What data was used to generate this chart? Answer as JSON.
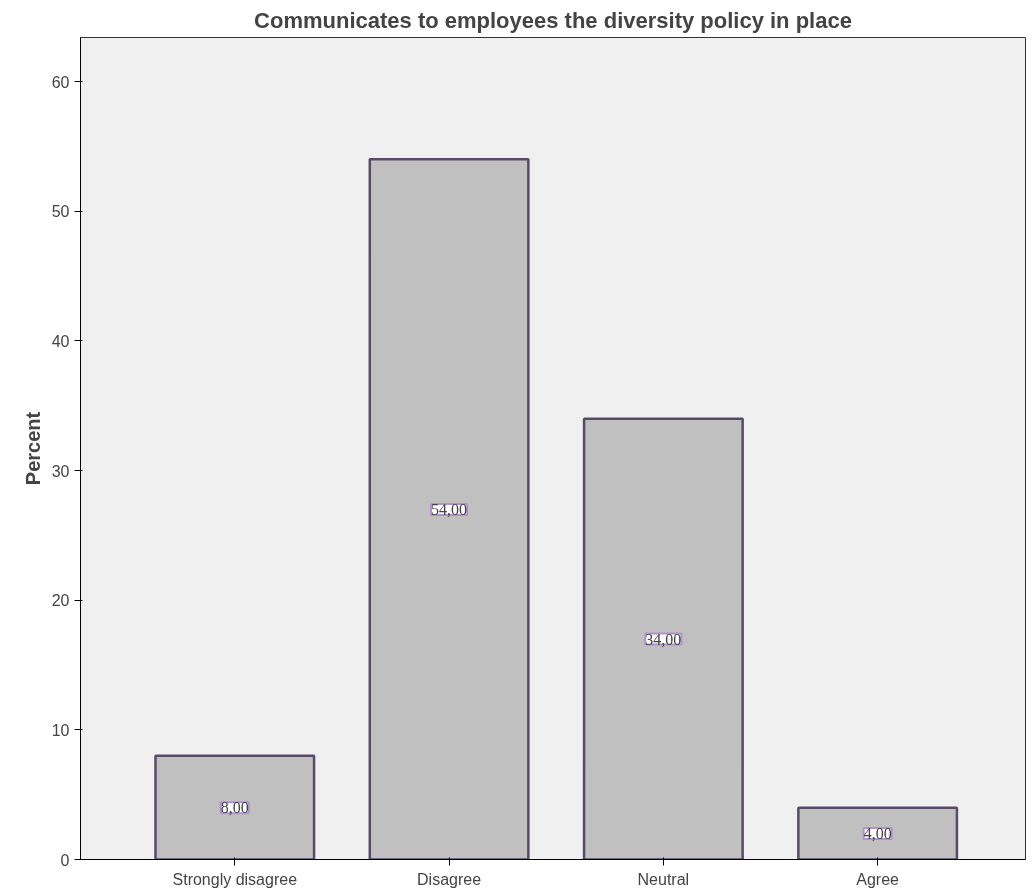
{
  "chart_data": {
    "type": "bar",
    "title": "Communicates to employees the diversity policy in place",
    "ylabel": "Percent",
    "categories": [
      "Strongly disagree",
      "Disagree",
      "Neutral",
      "Agree"
    ],
    "values": [
      8,
      54,
      34,
      4
    ],
    "value_labels": [
      "8,00",
      "54,00",
      "34,00",
      "4,00"
    ],
    "color": "#c0c0c0",
    "ylim": [
      0,
      63.4
    ],
    "yticks": [
      0,
      10,
      20,
      30,
      40,
      50,
      60
    ],
    "grid": false
  }
}
